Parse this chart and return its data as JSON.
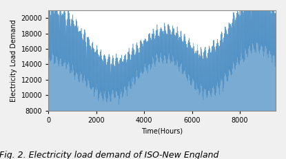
{
  "xlabel": "Time(Hours)",
  "ylabel": "Electricity Load Demand",
  "caption": "Fig. 2. Electricity load demand of ISO-New England",
  "line_color": "#4d8fc4",
  "xlim": [
    0,
    9500
  ],
  "ylim": [
    8000,
    21000
  ],
  "xticks": [
    0,
    2000,
    4000,
    6000,
    8000
  ],
  "yticks": [
    8000,
    10000,
    12000,
    14000,
    16000,
    18000,
    20000
  ],
  "n_points": 9500,
  "bg_color": "#f0f0f0",
  "ax_bg_color": "#ffffff",
  "label_fontsize": 7,
  "tick_fontsize": 7,
  "caption_fontsize": 9,
  "linewidth": 0.4,
  "seed": 42
}
